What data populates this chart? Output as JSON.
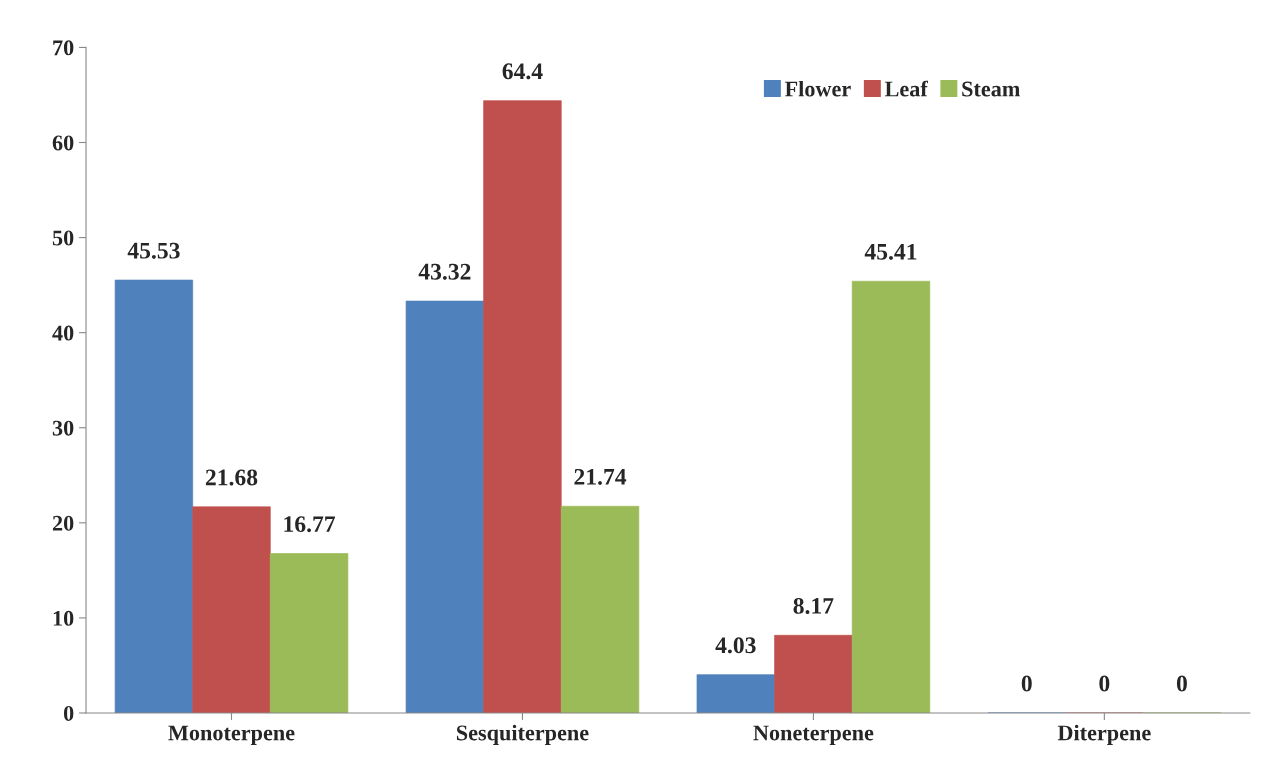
{
  "chart_data": {
    "type": "bar",
    "categories": [
      "Monoterpene",
      "Sesquiterpene",
      "Noneterpene",
      "Diterpene"
    ],
    "series": [
      {
        "name": "Flower",
        "color": "#4f81bd",
        "values": [
          45.53,
          43.32,
          4.03,
          0
        ]
      },
      {
        "name": "Leaf",
        "color": "#c0504d",
        "values": [
          21.68,
          64.4,
          8.17,
          0
        ]
      },
      {
        "name": "Steam",
        "color": "#9bbb59",
        "values": [
          16.77,
          21.74,
          45.41,
          0
        ]
      }
    ],
    "ylim": [
      0,
      70
    ],
    "yticks": [
      0,
      10,
      20,
      30,
      40,
      50,
      60,
      70
    ],
    "data_labels": true,
    "grid": false,
    "legend": "top right"
  }
}
